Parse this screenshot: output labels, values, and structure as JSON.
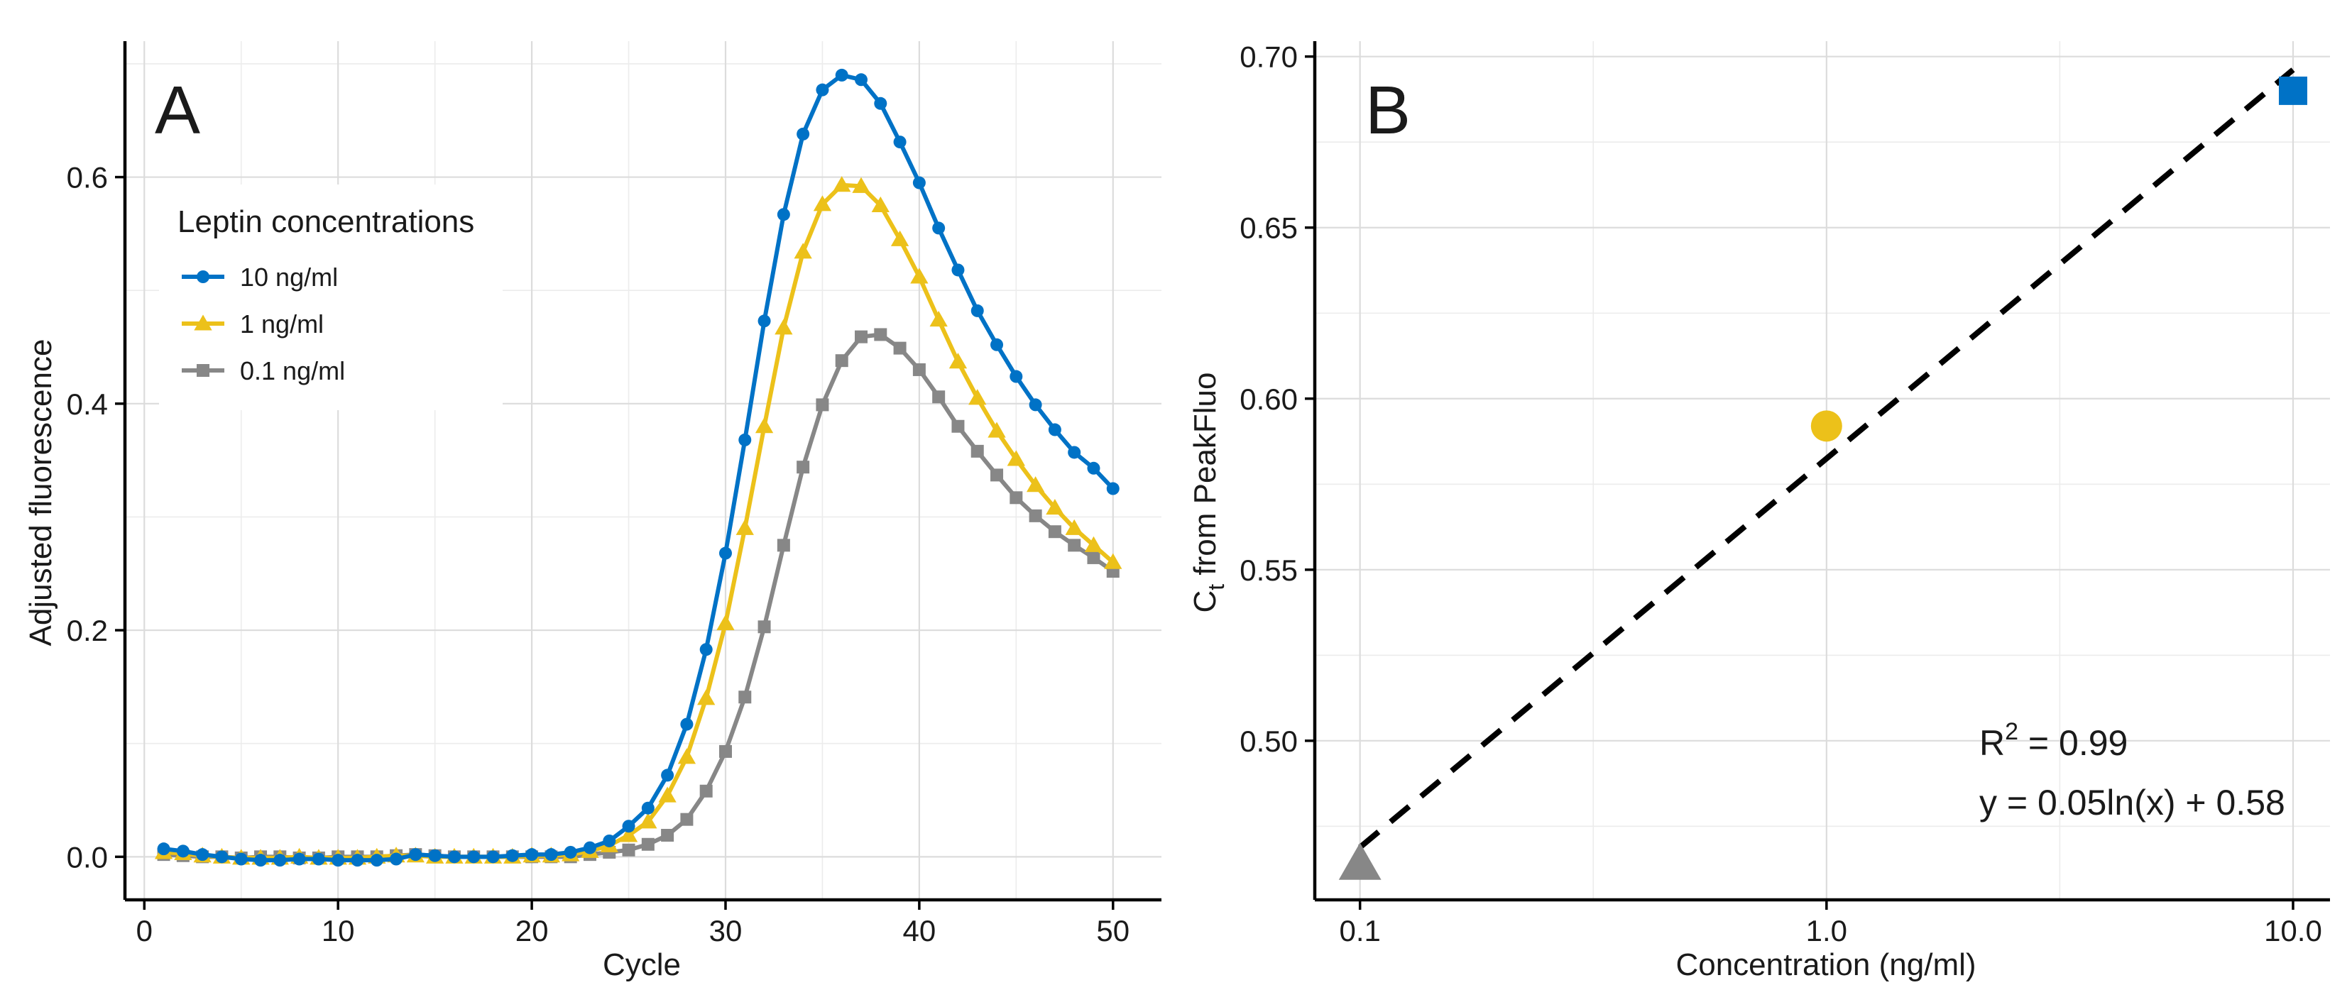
{
  "colors": {
    "ten": "#0072C6",
    "one": "#ECC11A",
    "point_one": "#878787"
  },
  "chart_data": [
    {
      "id": "A",
      "type": "line",
      "panel_label": "A",
      "title": "",
      "xlabel": "Cycle",
      "ylabel": "Adjusted fluorescence",
      "xlim": [
        -1,
        52.5
      ],
      "ylim": [
        -0.038,
        0.72
      ],
      "xticks": [
        0,
        10,
        20,
        30,
        40,
        50
      ],
      "yticks": [
        0.0,
        0.2,
        0.4,
        0.6
      ],
      "ytick_labels": [
        "0.0",
        "0.2",
        "0.4",
        "0.6"
      ],
      "grid": true,
      "legend": {
        "title": "Leptin concentrations",
        "position": "top-left"
      },
      "x": [
        1,
        2,
        3,
        4,
        5,
        6,
        7,
        8,
        9,
        10,
        11,
        12,
        13,
        14,
        15,
        16,
        17,
        18,
        19,
        20,
        21,
        22,
        23,
        24,
        25,
        26,
        27,
        28,
        29,
        30,
        31,
        32,
        33,
        34,
        35,
        36,
        37,
        38,
        39,
        40,
        41,
        42,
        43,
        44,
        45,
        46,
        47,
        48,
        49,
        50
      ],
      "series": [
        {
          "name": "10 ng/ml",
          "color": "#0072C6",
          "marker": "circle",
          "values": [
            0.007,
            0.005,
            0.002,
            0.0,
            -0.002,
            -0.003,
            -0.003,
            -0.002,
            -0.002,
            -0.003,
            -0.003,
            -0.003,
            -0.002,
            0.002,
            0.001,
            0.0,
            0.0,
            0.0,
            0.001,
            0.002,
            0.002,
            0.004,
            0.008,
            0.014,
            0.027,
            0.043,
            0.072,
            0.117,
            0.183,
            0.268,
            0.368,
            0.473,
            0.567,
            0.638,
            0.677,
            0.69,
            0.686,
            0.665,
            0.631,
            0.595,
            0.555,
            0.518,
            0.482,
            0.452,
            0.424,
            0.399,
            0.377,
            0.357,
            0.343,
            0.325
          ]
        },
        {
          "name": "1 ng/ml",
          "color": "#ECC11A",
          "marker": "triangle",
          "values": [
            0.004,
            0.003,
            0.001,
            0.0,
            -0.001,
            -0.001,
            -0.001,
            0.0,
            -0.001,
            -0.001,
            -0.001,
            0.0,
            0.001,
            0.001,
            0.0,
            0.0,
            0.0,
            0.0,
            0.0,
            0.001,
            0.001,
            0.002,
            0.005,
            0.01,
            0.019,
            0.031,
            0.054,
            0.088,
            0.14,
            0.206,
            0.29,
            0.38,
            0.467,
            0.534,
            0.576,
            0.593,
            0.592,
            0.575,
            0.545,
            0.512,
            0.474,
            0.437,
            0.405,
            0.376,
            0.351,
            0.328,
            0.308,
            0.29,
            0.275,
            0.26
          ]
        },
        {
          "name": "0.1 ng/ml",
          "color": "#878787",
          "marker": "square",
          "values": [
            0.002,
            0.001,
            0.0,
            0.0,
            -0.001,
            0.0,
            0.0,
            -0.001,
            -0.001,
            0.0,
            0.0,
            0.0,
            0.001,
            0.002,
            0.001,
            0.0,
            0.0,
            0.0,
            0.0,
            0.0,
            0.0,
            0.0,
            0.002,
            0.004,
            0.006,
            0.011,
            0.019,
            0.033,
            0.058,
            0.093,
            0.141,
            0.203,
            0.275,
            0.344,
            0.399,
            0.438,
            0.459,
            0.461,
            0.449,
            0.43,
            0.406,
            0.38,
            0.358,
            0.337,
            0.317,
            0.301,
            0.287,
            0.275,
            0.264,
            0.252
          ]
        }
      ]
    },
    {
      "id": "B",
      "type": "scatter",
      "panel_label": "B",
      "xlabel": "Concentration (ng/ml)",
      "ylabel_main": "C",
      "ylabel_sub": "t",
      "ylabel_rest": " from PeakFluo",
      "xscale": "log10",
      "xlim": [
        0.08,
        12
      ],
      "ylim": [
        0.4535,
        0.7045
      ],
      "xticks": [
        0.1,
        1.0,
        10.0
      ],
      "xtick_labels": [
        "0.1",
        "1.0",
        "10.0"
      ],
      "yticks": [
        0.5,
        0.55,
        0.6,
        0.65,
        0.7
      ],
      "ytick_labels": [
        "0.50",
        "0.55",
        "0.60",
        "0.65",
        "0.70"
      ],
      "grid": true,
      "points": [
        {
          "x": 0.1,
          "y": 0.464,
          "marker": "triangle",
          "color": "#878787"
        },
        {
          "x": 1.0,
          "y": 0.592,
          "marker": "circle",
          "color": "#ECC11A"
        },
        {
          "x": 10.0,
          "y": 0.69,
          "marker": "square",
          "color": "#0072C6"
        }
      ],
      "fit": {
        "type": "log",
        "slope": 0.05,
        "intercept": 0.58,
        "x_from": 0.1,
        "x_to": 10.0,
        "line_style": "dashed"
      },
      "annotations": {
        "r2_prefix": "R",
        "r2_sup": "2",
        "r2_value": " = 0.99",
        "equation": "y = 0.05ln(x) + 0.58"
      }
    }
  ]
}
